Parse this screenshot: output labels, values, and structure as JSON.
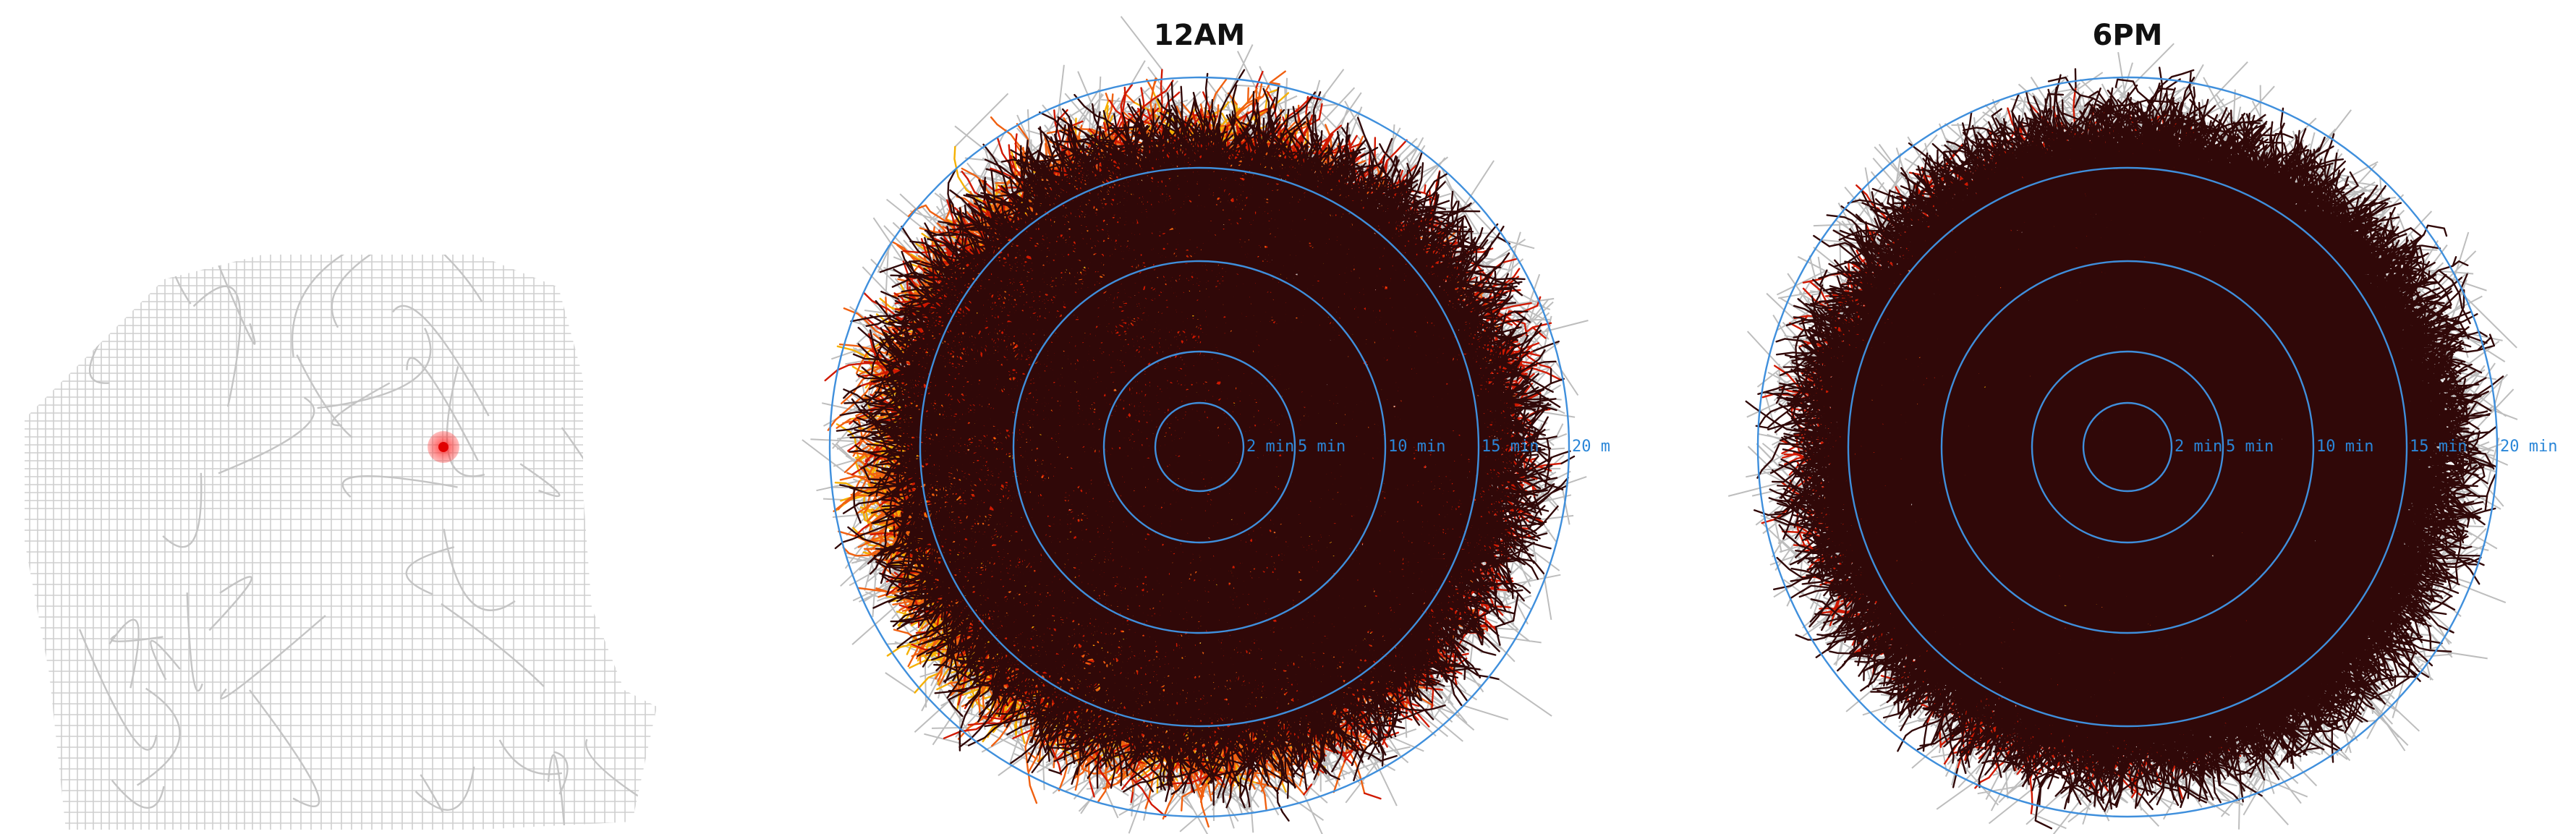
{
  "panels": [
    {
      "title": "12AM",
      "ring_labels": [
        "2 min",
        "5 min",
        "10 min",
        "15 min",
        "20 m"
      ]
    },
    {
      "title": "6PM",
      "ring_labels": [
        "2 min",
        "5 min",
        "10 min",
        "15 min",
        "20 min"
      ]
    }
  ]
}
